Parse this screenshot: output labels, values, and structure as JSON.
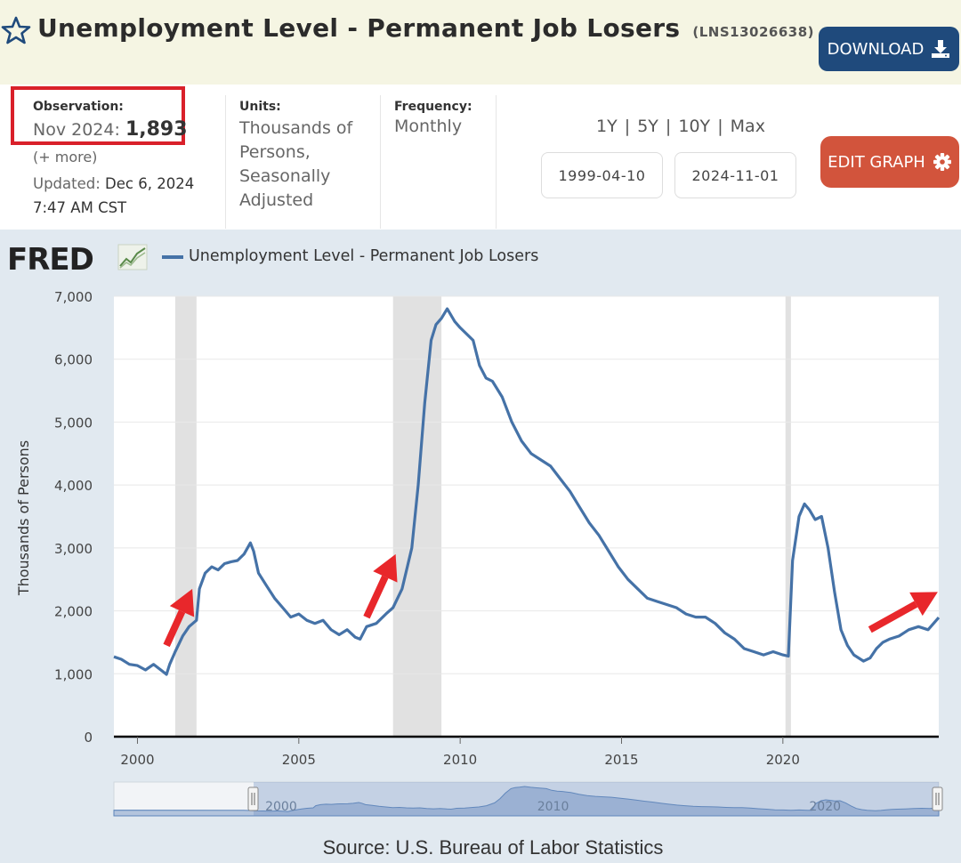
{
  "header": {
    "title": "Unemployment Level - Permanent Job Losers",
    "series_id": "(LNS13026638)",
    "download_label": "DOWNLOAD"
  },
  "meta": {
    "observation_label": "Observation:",
    "observation_date": "Nov 2024:",
    "observation_value": "1,893",
    "more_label": "(+ more)",
    "updated_label": "Updated:",
    "updated_date": "Dec 6, 2024",
    "updated_time": "7:47 AM CST",
    "units_label": "Units:",
    "units_value": "Thousands of Persons, Seasonally Adjusted",
    "frequency_label": "Frequency:",
    "frequency_value": "Monthly",
    "range_1y": "1Y",
    "range_5y": "5Y",
    "range_10y": "10Y",
    "range_max": "Max",
    "start_date": "1999-04-10",
    "end_date": "2024-11-01",
    "edit_label": "EDIT GRAPH"
  },
  "graph": {
    "logo": "FRED",
    "legend": "Unemployment Level - Permanent Job Losers",
    "source": "Source: U.S. Bureau of Labor Statistics",
    "line_color": "#4572a7",
    "arrow_color": "#e8272b",
    "navigator_ticks": [
      "2000",
      "2010",
      "2020"
    ]
  },
  "chart_data": {
    "type": "line",
    "ylabel": "Thousands of Persons",
    "ylim": [
      0,
      7000
    ],
    "xlim": [
      1999.27,
      2024.83
    ],
    "yticks": [
      "0",
      "1,000",
      "2,000",
      "3,000",
      "4,000",
      "5,000",
      "6,000",
      "7,000"
    ],
    "xticks": [
      "2000",
      "2005",
      "2010",
      "2015",
      "2020"
    ],
    "recessions": [
      [
        2001.17,
        2001.83
      ],
      [
        2007.92,
        2009.42
      ],
      [
        2020.08,
        2020.25
      ]
    ],
    "series": [
      {
        "name": "Unemployment Level - Permanent Job Losers",
        "x": [
          1999.27,
          1999.5,
          1999.75,
          2000.0,
          2000.25,
          2000.5,
          2000.75,
          2000.9,
          2001.0,
          2001.17,
          2001.4,
          2001.6,
          2001.83,
          2001.92,
          2002.1,
          2002.3,
          2002.5,
          2002.7,
          2002.9,
          2003.1,
          2003.3,
          2003.5,
          2003.6,
          2003.75,
          2004.0,
          2004.25,
          2004.5,
          2004.75,
          2005.0,
          2005.25,
          2005.5,
          2005.75,
          2006.0,
          2006.25,
          2006.5,
          2006.75,
          2006.9,
          2007.1,
          2007.4,
          2007.7,
          2007.92,
          2008.2,
          2008.5,
          2008.7,
          2008.9,
          2009.1,
          2009.25,
          2009.42,
          2009.6,
          2009.83,
          2010.0,
          2010.2,
          2010.4,
          2010.6,
          2010.8,
          2011.0,
          2011.3,
          2011.6,
          2011.9,
          2012.2,
          2012.5,
          2012.8,
          2013.1,
          2013.4,
          2013.7,
          2014.0,
          2014.3,
          2014.6,
          2014.9,
          2015.2,
          2015.5,
          2015.8,
          2016.1,
          2016.4,
          2016.7,
          2017.0,
          2017.3,
          2017.6,
          2017.9,
          2018.2,
          2018.5,
          2018.8,
          2019.1,
          2019.4,
          2019.7,
          2020.0,
          2020.17,
          2020.3,
          2020.5,
          2020.67,
          2020.83,
          2021.0,
          2021.2,
          2021.4,
          2021.6,
          2021.8,
          2022.0,
          2022.2,
          2022.5,
          2022.7,
          2022.9,
          2023.1,
          2023.3,
          2023.6,
          2023.9,
          2024.2,
          2024.5,
          2024.83
        ],
        "values": [
          1270,
          1230,
          1150,
          1130,
          1060,
          1150,
          1050,
          990,
          1150,
          1350,
          1600,
          1750,
          1850,
          2350,
          2600,
          2700,
          2650,
          2750,
          2780,
          2800,
          2900,
          3080,
          2950,
          2600,
          2400,
          2200,
          2050,
          1900,
          1950,
          1850,
          1800,
          1850,
          1700,
          1620,
          1700,
          1580,
          1550,
          1750,
          1800,
          1950,
          2050,
          2350,
          3000,
          4000,
          5300,
          6300,
          6550,
          6650,
          6800,
          6600,
          6500,
          6400,
          6300,
          5900,
          5700,
          5650,
          5400,
          5000,
          4700,
          4500,
          4400,
          4300,
          4100,
          3900,
          3650,
          3400,
          3200,
          2950,
          2700,
          2500,
          2350,
          2200,
          2150,
          2100,
          2050,
          1950,
          1900,
          1900,
          1800,
          1650,
          1550,
          1400,
          1350,
          1300,
          1350,
          1300,
          1280,
          2800,
          3500,
          3700,
          3600,
          3450,
          3500,
          3000,
          2300,
          1700,
          1450,
          1300,
          1200,
          1250,
          1400,
          1500,
          1550,
          1600,
          1700,
          1750,
          1700,
          1893
        ]
      }
    ]
  }
}
